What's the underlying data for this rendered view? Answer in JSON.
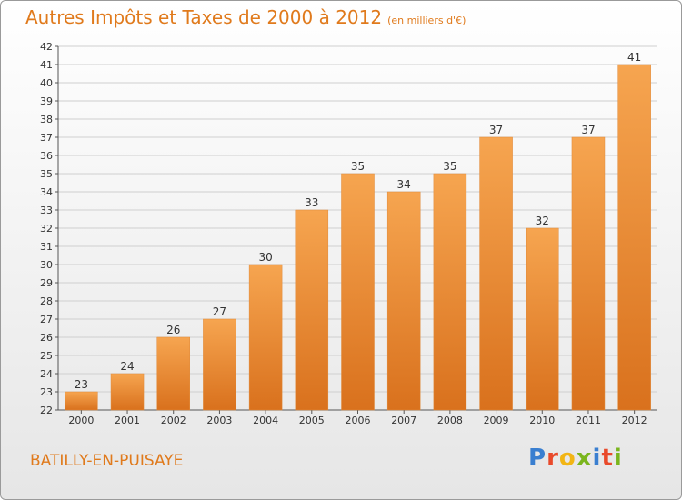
{
  "title": "Autres Impôts et Taxes de 2000 à 2012",
  "title_unit": "(en milliers d'€)",
  "place": "BATILLY-EN-PUISAYE",
  "logo": {
    "letters": [
      "P",
      "r",
      "o",
      "x",
      "i",
      "t",
      "i"
    ],
    "colors": [
      "#3a7fd0",
      "#e94a2b",
      "#f2b514",
      "#7ab51d",
      "#3a7fd0",
      "#e94a2b",
      "#7ab51d"
    ]
  },
  "colors": {
    "title": "#e07a1c",
    "bar_top": "#f6a550",
    "bar_bottom": "#d9711d",
    "grid": "#cfcfcf"
  },
  "chart_data": {
    "type": "bar",
    "categories": [
      "2000",
      "2001",
      "2002",
      "2003",
      "2004",
      "2005",
      "2006",
      "2007",
      "2008",
      "2009",
      "2010",
      "2011",
      "2012"
    ],
    "values": [
      23,
      24,
      26,
      27,
      30,
      33,
      35,
      34,
      35,
      37,
      32,
      37,
      41
    ],
    "title": "Autres Impôts et Taxes de 2000 à 2012",
    "unit": "(en milliers d'€)",
    "ylim": [
      22,
      42
    ],
    "yticks": [
      22,
      23,
      24,
      25,
      26,
      27,
      28,
      29,
      30,
      31,
      32,
      33,
      34,
      35,
      36,
      37,
      38,
      39,
      40,
      41,
      42
    ],
    "grid": true,
    "legend": "none"
  }
}
